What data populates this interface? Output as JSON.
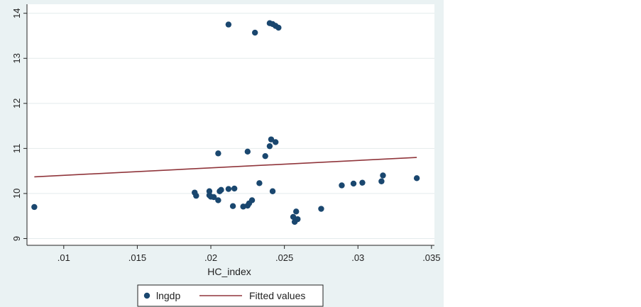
{
  "chart_data": {
    "type": "scatter",
    "title": "",
    "xlabel": "HC_index",
    "ylabel": "",
    "xlim": [
      0.0075,
      0.0352
    ],
    "ylim": [
      8.85,
      14.2
    ],
    "x_ticks": [
      0.01,
      0.015,
      0.02,
      0.025,
      0.03,
      0.035
    ],
    "x_tick_labels": [
      ".01",
      ".015",
      ".02",
      ".025",
      ".03",
      ".035"
    ],
    "y_ticks": [
      9,
      10,
      11,
      12,
      13,
      14
    ],
    "y_tick_labels": [
      "9",
      "10",
      "11",
      "12",
      "13",
      "14"
    ],
    "grid": "horizontal",
    "legend_position": "bottom",
    "colors": {
      "points": "#1a476f",
      "fit": "#90353b",
      "plot_bg": "#ffffff",
      "outer_bg": "#eaf2f3"
    },
    "series": [
      {
        "name": "lngdp",
        "kind": "scatter",
        "x": [
          0.008,
          0.0212,
          0.023,
          0.024,
          0.0242,
          0.0244,
          0.0246,
          0.0189,
          0.019,
          0.0199,
          0.0199,
          0.02,
          0.0202,
          0.0205,
          0.0206,
          0.0207,
          0.0212,
          0.0216,
          0.0215,
          0.0222,
          0.0225,
          0.0226,
          0.0228,
          0.0233,
          0.0205,
          0.0225,
          0.0237,
          0.024,
          0.0241,
          0.0244,
          0.0242,
          0.0256,
          0.0258,
          0.0257,
          0.0259,
          0.0275,
          0.0289,
          0.0297,
          0.0303,
          0.0316,
          0.0317,
          0.034
        ],
        "y": [
          9.7,
          13.75,
          13.57,
          13.78,
          13.76,
          13.72,
          13.68,
          10.02,
          9.95,
          10.05,
          9.96,
          9.93,
          9.92,
          9.85,
          10.05,
          10.08,
          10.1,
          10.11,
          9.72,
          9.71,
          9.73,
          9.78,
          9.85,
          10.23,
          10.89,
          10.93,
          10.83,
          11.05,
          11.2,
          11.14,
          10.05,
          9.48,
          9.6,
          9.37,
          9.43,
          9.66,
          10.18,
          10.22,
          10.24,
          10.27,
          10.4,
          10.34
        ]
      },
      {
        "name": "Fitted values",
        "kind": "line",
        "x": [
          0.008,
          0.034
        ],
        "y": [
          10.37,
          10.8
        ]
      }
    ]
  }
}
